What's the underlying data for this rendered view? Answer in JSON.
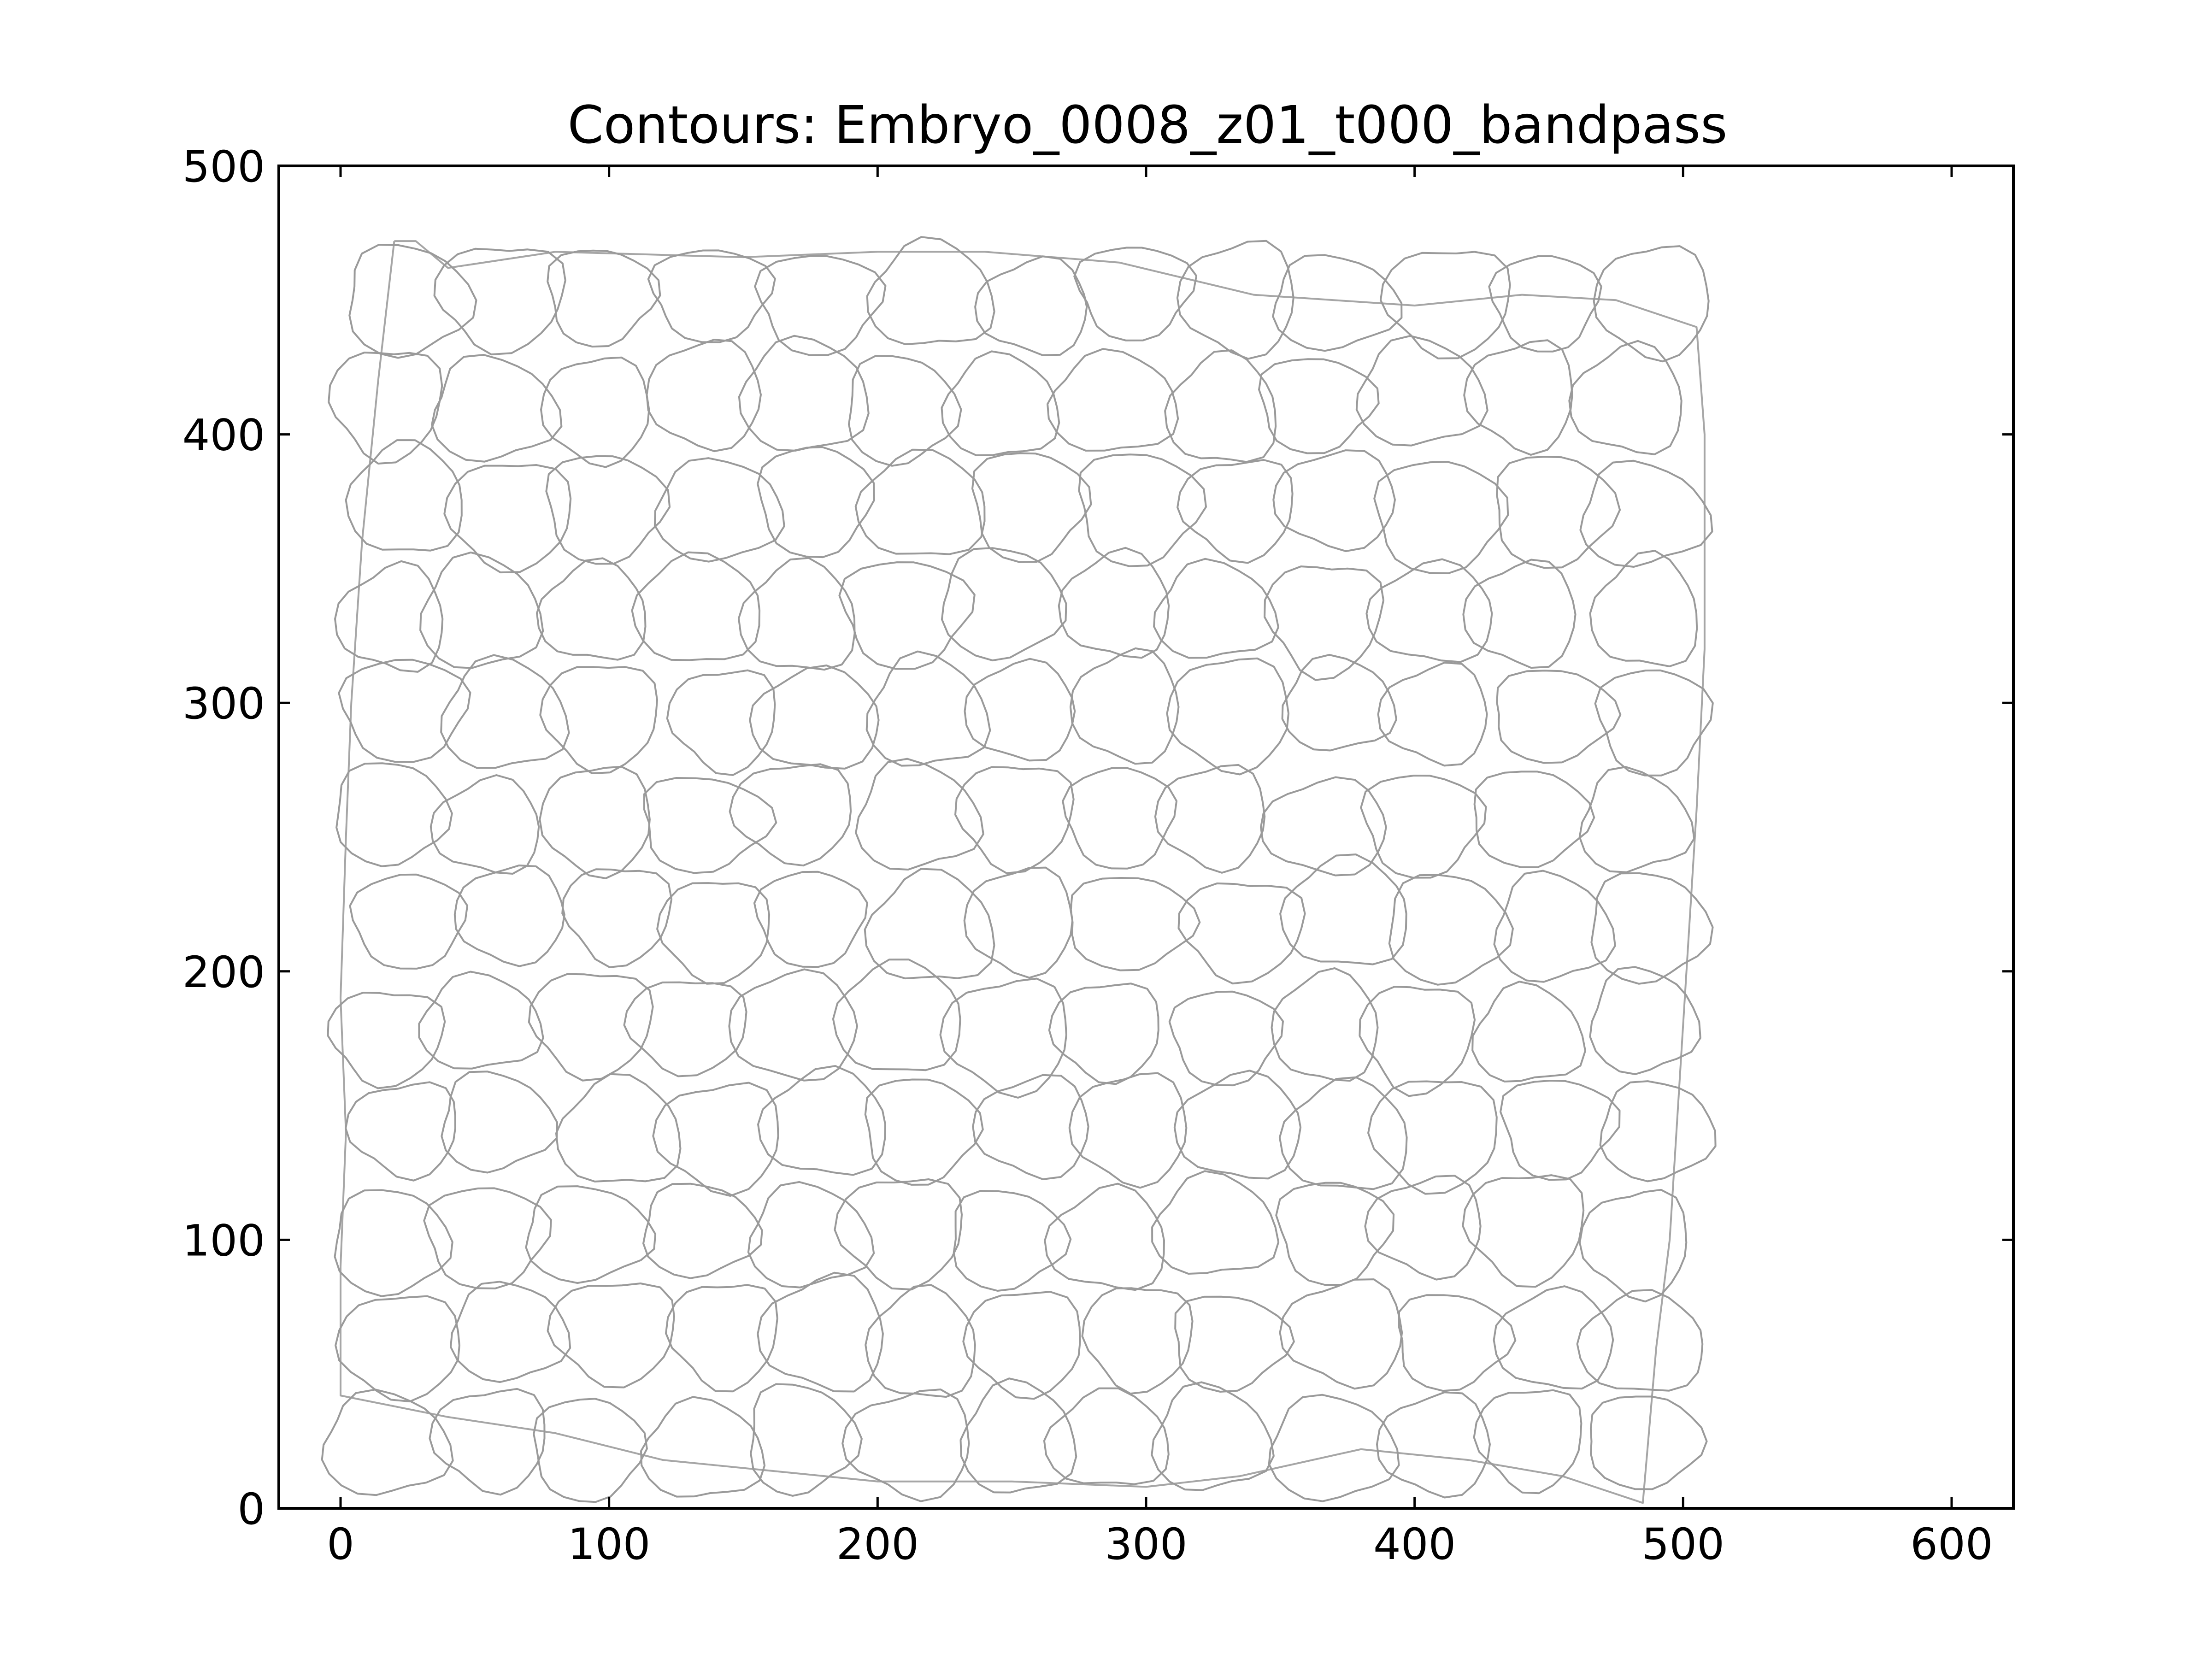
{
  "chart_data": {
    "type": "contour",
    "title": "Contours: Embryo_0008_z01_t000_bandpass",
    "xlabel": "",
    "ylabel": "",
    "xlim": [
      -23,
      623
    ],
    "ylim": [
      0,
      500
    ],
    "xticks": [
      0,
      100,
      200,
      300,
      400,
      500,
      600
    ],
    "yticks": [
      0,
      100,
      200,
      300,
      400,
      500
    ],
    "grid": false,
    "line_color": "#9a9a9a",
    "outline": [
      [
        20,
        472
      ],
      [
        28,
        472
      ],
      [
        40,
        462
      ],
      [
        80,
        468
      ],
      [
        150,
        466
      ],
      [
        200,
        468
      ],
      [
        240,
        468
      ],
      [
        290,
        464
      ],
      [
        340,
        452
      ],
      [
        400,
        448
      ],
      [
        440,
        452
      ],
      [
        475,
        450
      ],
      [
        505,
        440
      ],
      [
        508,
        400
      ],
      [
        508,
        320
      ],
      [
        505,
        260
      ],
      [
        500,
        180
      ],
      [
        495,
        100
      ],
      [
        490,
        60
      ],
      [
        485,
        2
      ],
      [
        455,
        12
      ],
      [
        420,
        18
      ],
      [
        380,
        22
      ],
      [
        335,
        12
      ],
      [
        300,
        8
      ],
      [
        250,
        10
      ],
      [
        200,
        10
      ],
      [
        160,
        14
      ],
      [
        120,
        18
      ],
      [
        80,
        28
      ],
      [
        40,
        34
      ],
      [
        0,
        42
      ],
      [
        0,
        90
      ],
      [
        2,
        140
      ],
      [
        0,
        190
      ],
      [
        2,
        250
      ],
      [
        4,
        300
      ],
      [
        8,
        360
      ],
      [
        14,
        420
      ],
      [
        20,
        472
      ]
    ],
    "cell_grid": {
      "x_range": [
        0,
        505
      ],
      "y_range": [
        5,
        470
      ],
      "columns": 13,
      "rows": 12,
      "cell_size_data_units": [
        24,
        21
      ]
    }
  }
}
